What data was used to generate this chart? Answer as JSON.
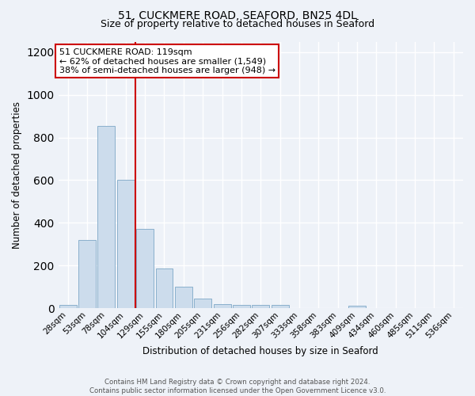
{
  "title1": "51, CUCKMERE ROAD, SEAFORD, BN25 4DL",
  "title2": "Size of property relative to detached houses in Seaford",
  "xlabel": "Distribution of detached houses by size in Seaford",
  "ylabel": "Number of detached properties",
  "bin_labels": [
    "28sqm",
    "53sqm",
    "78sqm",
    "104sqm",
    "129sqm",
    "155sqm",
    "180sqm",
    "205sqm",
    "231sqm",
    "256sqm",
    "282sqm",
    "307sqm",
    "333sqm",
    "358sqm",
    "383sqm",
    "409sqm",
    "434sqm",
    "460sqm",
    "485sqm",
    "511sqm",
    "536sqm"
  ],
  "bar_heights": [
    15,
    320,
    855,
    600,
    370,
    185,
    100,
    45,
    20,
    15,
    15,
    15,
    0,
    0,
    0,
    10,
    0,
    0,
    0,
    0,
    0
  ],
  "bar_color": "#ccdcec",
  "bar_edgecolor": "#8ab0cc",
  "annotation_text": "51 CUCKMERE ROAD: 119sqm\n← 62% of detached houses are smaller (1,549)\n38% of semi-detached houses are larger (948) →",
  "annotation_box_facecolor": "#ffffff",
  "annotation_box_edgecolor": "#cc0000",
  "redline_color": "#cc0000",
  "ylim": [
    0,
    1250
  ],
  "yticks": [
    0,
    200,
    400,
    600,
    800,
    1000,
    1200
  ],
  "background_color": "#eef2f8",
  "grid_color": "#ffffff",
  "footer_text": "Contains HM Land Registry data © Crown copyright and database right 2024.\nContains public sector information licensed under the Open Government Licence v3.0."
}
